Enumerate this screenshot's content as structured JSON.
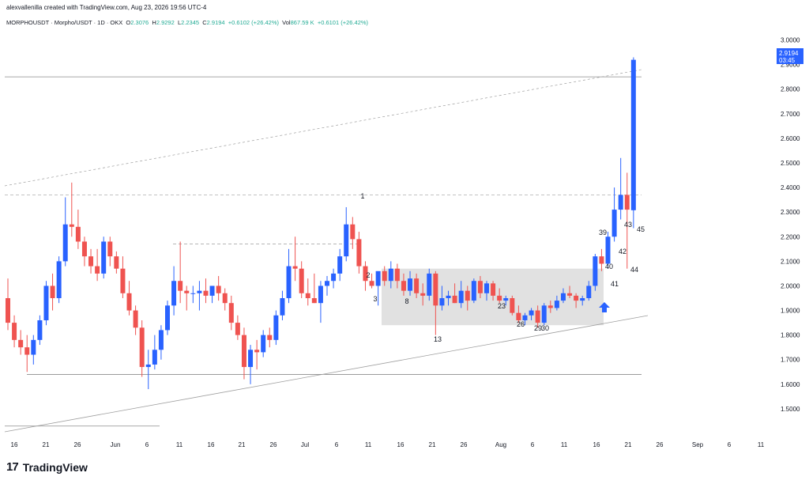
{
  "header": {
    "created_by": "alexvallenilla created with TradingView.com, Aug 23, 2026 19:56 UTC-4",
    "symbol": "MORPHOUSDT · Morpho/USDT · 1D · OKX",
    "o_label": "O",
    "o_value": "2.3076",
    "h_label": "H",
    "h_value": "2.9292",
    "l_label": "L",
    "l_value": "2.2345",
    "c_label": "C",
    "c_value": "2.9194",
    "change": "+0.6102 (+26.42%)",
    "vol_label": "Vol",
    "vol_value": "867.59 K",
    "vol_change": "+0.6101 (+26.42%)"
  },
  "price_tag": {
    "price": "2.9194",
    "countdown": "03:45",
    "color": "#2962ff"
  },
  "footer": {
    "brand": "TradingView",
    "mark": "17"
  },
  "colors": {
    "up": "#2962ff",
    "down": "#ef5350",
    "zone": "#c8c8c8",
    "line": "#9e9e9e"
  },
  "chart_data": {
    "type": "candlestick",
    "ylim": [
      1.4,
      3.05
    ],
    "y_ticks": [
      "3.0000",
      "2.9000",
      "2.8000",
      "2.7000",
      "2.6000",
      "2.5000",
      "2.4000",
      "2.3000",
      "2.2000",
      "2.1000",
      "2.0000",
      "1.9000",
      "1.8000",
      "1.7000",
      "1.6000",
      "1.5000"
    ],
    "x_ticks": [
      "16",
      "21",
      "26",
      "Jun",
      "6",
      "11",
      "16",
      "21",
      "26",
      "Jul",
      "6",
      "11",
      "16",
      "21",
      "26",
      "Aug",
      "6",
      "11",
      "16",
      "21",
      "26",
      "Sep",
      "6",
      "11"
    ],
    "candles": [
      {
        "o": 1.95,
        "h": 2.03,
        "l": 1.82,
        "c": 1.85
      },
      {
        "o": 1.85,
        "h": 1.88,
        "l": 1.75,
        "c": 1.78
      },
      {
        "o": 1.78,
        "h": 1.82,
        "l": 1.72,
        "c": 1.75
      },
      {
        "o": 1.75,
        "h": 1.8,
        "l": 1.65,
        "c": 1.72
      },
      {
        "o": 1.72,
        "h": 1.8,
        "l": 1.68,
        "c": 1.78
      },
      {
        "o": 1.78,
        "h": 1.88,
        "l": 1.76,
        "c": 1.86
      },
      {
        "o": 1.86,
        "h": 2.02,
        "l": 1.84,
        "c": 2.0
      },
      {
        "o": 2.0,
        "h": 2.05,
        "l": 1.9,
        "c": 1.95
      },
      {
        "o": 1.95,
        "h": 2.12,
        "l": 1.93,
        "c": 2.1
      },
      {
        "o": 2.1,
        "h": 2.36,
        "l": 2.08,
        "c": 2.25
      },
      {
        "o": 2.25,
        "h": 2.42,
        "l": 2.2,
        "c": 2.24
      },
      {
        "o": 2.24,
        "h": 2.31,
        "l": 2.15,
        "c": 2.18
      },
      {
        "o": 2.18,
        "h": 2.2,
        "l": 2.08,
        "c": 2.12
      },
      {
        "o": 2.12,
        "h": 2.15,
        "l": 2.05,
        "c": 2.08
      },
      {
        "o": 2.08,
        "h": 2.15,
        "l": 2.02,
        "c": 2.05
      },
      {
        "o": 2.05,
        "h": 2.2,
        "l": 2.03,
        "c": 2.18
      },
      {
        "o": 2.18,
        "h": 2.2,
        "l": 2.08,
        "c": 2.12
      },
      {
        "o": 2.12,
        "h": 2.14,
        "l": 2.05,
        "c": 2.07
      },
      {
        "o": 2.07,
        "h": 2.12,
        "l": 1.95,
        "c": 1.97
      },
      {
        "o": 1.97,
        "h": 2.02,
        "l": 1.88,
        "c": 1.9
      },
      {
        "o": 1.9,
        "h": 1.92,
        "l": 1.8,
        "c": 1.83
      },
      {
        "o": 1.83,
        "h": 1.86,
        "l": 1.63,
        "c": 1.67
      },
      {
        "o": 1.67,
        "h": 1.74,
        "l": 1.58,
        "c": 1.68
      },
      {
        "o": 1.68,
        "h": 1.8,
        "l": 1.66,
        "c": 1.74
      },
      {
        "o": 1.74,
        "h": 1.84,
        "l": 1.7,
        "c": 1.82
      },
      {
        "o": 1.82,
        "h": 1.94,
        "l": 1.8,
        "c": 1.92
      },
      {
        "o": 1.92,
        "h": 2.08,
        "l": 1.88,
        "c": 2.02
      },
      {
        "o": 2.02,
        "h": 2.18,
        "l": 1.93,
        "c": 1.98
      },
      {
        "o": 1.98,
        "h": 2.0,
        "l": 1.9,
        "c": 1.97
      },
      {
        "o": 1.97,
        "h": 2.0,
        "l": 1.93,
        "c": 1.97
      },
      {
        "o": 1.97,
        "h": 2.02,
        "l": 1.9,
        "c": 1.98
      },
      {
        "o": 1.98,
        "h": 2.03,
        "l": 1.93,
        "c": 1.96
      },
      {
        "o": 1.96,
        "h": 2.0,
        "l": 1.93,
        "c": 2.0
      },
      {
        "o": 2.0,
        "h": 2.04,
        "l": 1.94,
        "c": 1.97
      },
      {
        "o": 1.97,
        "h": 1.99,
        "l": 1.9,
        "c": 1.93
      },
      {
        "o": 1.93,
        "h": 1.96,
        "l": 1.82,
        "c": 1.85
      },
      {
        "o": 1.85,
        "h": 1.88,
        "l": 1.78,
        "c": 1.8
      },
      {
        "o": 1.8,
        "h": 1.83,
        "l": 1.62,
        "c": 1.67
      },
      {
        "o": 1.67,
        "h": 1.76,
        "l": 1.6,
        "c": 1.74
      },
      {
        "o": 1.74,
        "h": 1.78,
        "l": 1.66,
        "c": 1.73
      },
      {
        "o": 1.73,
        "h": 1.82,
        "l": 1.71,
        "c": 1.8
      },
      {
        "o": 1.8,
        "h": 1.83,
        "l": 1.75,
        "c": 1.78
      },
      {
        "o": 1.78,
        "h": 1.9,
        "l": 1.76,
        "c": 1.88
      },
      {
        "o": 1.88,
        "h": 1.98,
        "l": 1.86,
        "c": 1.95
      },
      {
        "o": 1.95,
        "h": 2.15,
        "l": 1.93,
        "c": 2.08
      },
      {
        "o": 2.08,
        "h": 2.2,
        "l": 2.02,
        "c": 2.07
      },
      {
        "o": 2.07,
        "h": 2.1,
        "l": 1.95,
        "c": 1.97
      },
      {
        "o": 1.97,
        "h": 2.03,
        "l": 1.92,
        "c": 1.95
      },
      {
        "o": 1.95,
        "h": 2.05,
        "l": 1.93,
        "c": 1.93
      },
      {
        "o": 1.93,
        "h": 2.02,
        "l": 1.85,
        "c": 2.0
      },
      {
        "o": 2.0,
        "h": 2.04,
        "l": 1.96,
        "c": 2.02
      },
      {
        "o": 2.02,
        "h": 2.07,
        "l": 1.99,
        "c": 2.05
      },
      {
        "o": 2.05,
        "h": 2.15,
        "l": 2.02,
        "c": 2.12
      },
      {
        "o": 2.12,
        "h": 2.32,
        "l": 2.1,
        "c": 2.25
      },
      {
        "o": 2.25,
        "h": 2.28,
        "l": 2.15,
        "c": 2.19
      },
      {
        "o": 2.19,
        "h": 2.22,
        "l": 2.05,
        "c": 2.08
      },
      {
        "o": 2.08,
        "h": 2.1,
        "l": 1.98,
        "c": 2.02
      },
      {
        "o": 2.02,
        "h": 2.05,
        "l": 1.99,
        "c": 2.0
      },
      {
        "o": 2.0,
        "h": 2.05,
        "l": 1.92,
        "c": 2.06
      },
      {
        "o": 2.06,
        "h": 2.08,
        "l": 2.0,
        "c": 2.02
      },
      {
        "o": 2.02,
        "h": 2.1,
        "l": 1.99,
        "c": 2.07
      },
      {
        "o": 2.07,
        "h": 2.09,
        "l": 1.99,
        "c": 2.02
      },
      {
        "o": 2.02,
        "h": 2.05,
        "l": 1.96,
        "c": 1.98
      },
      {
        "o": 1.98,
        "h": 2.06,
        "l": 1.96,
        "c": 2.03
      },
      {
        "o": 2.03,
        "h": 2.05,
        "l": 1.95,
        "c": 1.97
      },
      {
        "o": 1.97,
        "h": 2.01,
        "l": 1.92,
        "c": 1.96
      },
      {
        "o": 1.96,
        "h": 2.07,
        "l": 1.94,
        "c": 2.05
      },
      {
        "o": 2.05,
        "h": 2.06,
        "l": 1.8,
        "c": 1.92
      },
      {
        "o": 1.92,
        "h": 2.0,
        "l": 1.9,
        "c": 1.95
      },
      {
        "o": 1.95,
        "h": 1.98,
        "l": 1.92,
        "c": 1.96
      },
      {
        "o": 1.96,
        "h": 2.01,
        "l": 1.93,
        "c": 1.93
      },
      {
        "o": 1.93,
        "h": 2.02,
        "l": 1.91,
        "c": 1.98
      },
      {
        "o": 1.98,
        "h": 2.0,
        "l": 1.9,
        "c": 1.94
      },
      {
        "o": 1.94,
        "h": 2.03,
        "l": 1.93,
        "c": 2.02
      },
      {
        "o": 2.02,
        "h": 2.04,
        "l": 1.95,
        "c": 1.97
      },
      {
        "o": 1.97,
        "h": 2.02,
        "l": 1.94,
        "c": 2.01
      },
      {
        "o": 2.01,
        "h": 2.02,
        "l": 1.94,
        "c": 1.96
      },
      {
        "o": 1.96,
        "h": 1.99,
        "l": 1.93,
        "c": 1.94
      },
      {
        "o": 1.94,
        "h": 1.96,
        "l": 1.92,
        "c": 1.95
      },
      {
        "o": 1.95,
        "h": 1.96,
        "l": 1.88,
        "c": 1.89
      },
      {
        "o": 1.89,
        "h": 1.92,
        "l": 1.85,
        "c": 1.86
      },
      {
        "o": 1.86,
        "h": 1.89,
        "l": 1.84,
        "c": 1.88
      },
      {
        "o": 1.88,
        "h": 1.91,
        "l": 1.86,
        "c": 1.9
      },
      {
        "o": 1.9,
        "h": 1.92,
        "l": 1.83,
        "c": 1.85
      },
      {
        "o": 1.85,
        "h": 1.93,
        "l": 1.84,
        "c": 1.92
      },
      {
        "o": 1.92,
        "h": 1.94,
        "l": 1.89,
        "c": 1.91
      },
      {
        "o": 1.91,
        "h": 1.96,
        "l": 1.9,
        "c": 1.94
      },
      {
        "o": 1.94,
        "h": 1.99,
        "l": 1.93,
        "c": 1.97
      },
      {
        "o": 1.97,
        "h": 2.0,
        "l": 1.95,
        "c": 1.96
      },
      {
        "o": 1.96,
        "h": 1.97,
        "l": 1.91,
        "c": 1.94
      },
      {
        "o": 1.94,
        "h": 1.96,
        "l": 1.92,
        "c": 1.95
      },
      {
        "o": 1.95,
        "h": 2.02,
        "l": 1.94,
        "c": 2.0
      },
      {
        "o": 2.0,
        "h": 2.13,
        "l": 1.98,
        "c": 2.12
      },
      {
        "o": 2.12,
        "h": 2.15,
        "l": 2.06,
        "c": 2.09
      },
      {
        "o": 2.09,
        "h": 2.22,
        "l": 2.07,
        "c": 2.2
      },
      {
        "o": 2.2,
        "h": 2.4,
        "l": 2.18,
        "c": 2.31
      },
      {
        "o": 2.31,
        "h": 2.52,
        "l": 2.27,
        "c": 2.37
      },
      {
        "o": 2.37,
        "h": 2.46,
        "l": 2.07,
        "c": 2.31
      },
      {
        "o": 2.3076,
        "h": 2.9292,
        "l": 2.2345,
        "c": 2.9194
      }
    ],
    "labels": [
      "1",
      "2",
      "3",
      "8",
      "13",
      "23",
      "26",
      "29",
      "30",
      "39",
      "40",
      "41",
      "42",
      "43",
      "44",
      "45"
    ],
    "annotations": {
      "zone": {
        "y_low": 1.84,
        "y_high": 2.07
      },
      "horizontal_levels": [
        2.85,
        2.37,
        2.17,
        1.64,
        1.43
      ],
      "arrow": "up"
    }
  }
}
